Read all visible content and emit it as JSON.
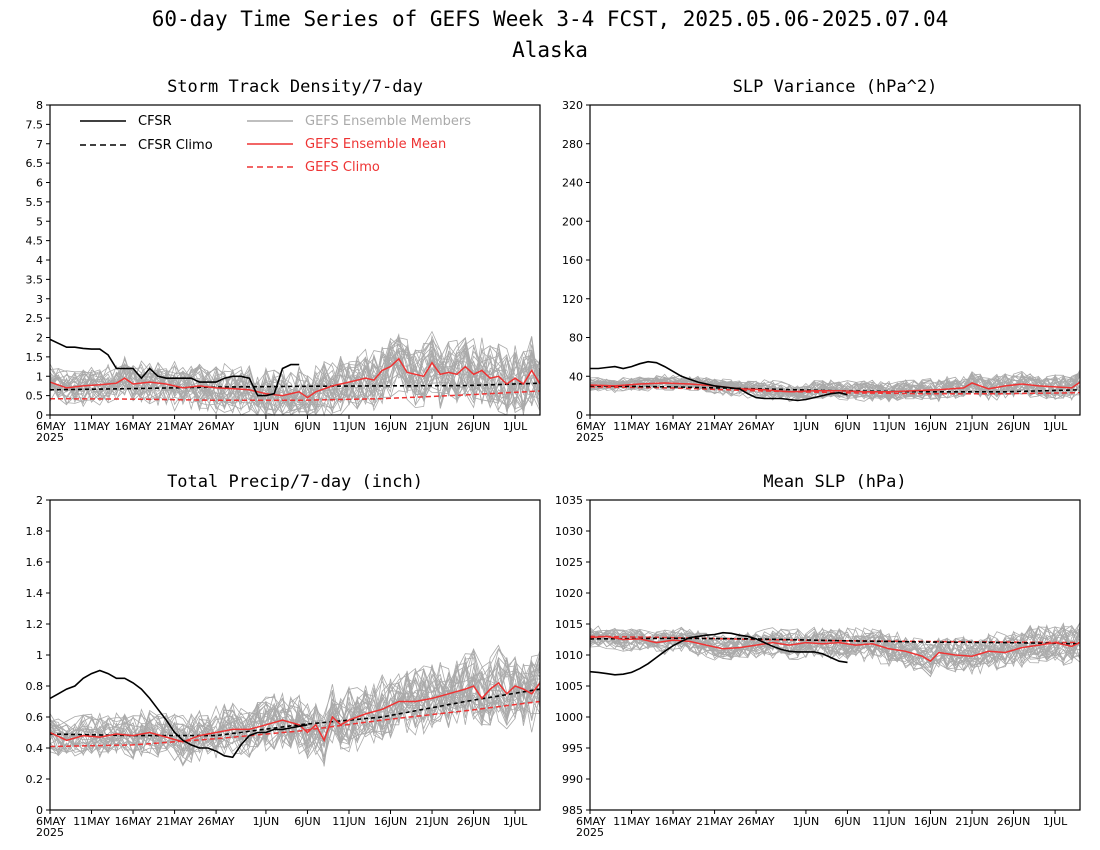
{
  "figure": {
    "title_line1": "60-day Time Series of GEFS Week 3-4 FCST, 2025.05.06-2025.07.04",
    "title_line2": "Alaska"
  },
  "colors": {
    "cfsr": "#000000",
    "members": "#aaaaaa",
    "ens_mean": "#ee3333",
    "gefs_climo": "#ee3333"
  },
  "legend": {
    "cfsr": "CFSR",
    "cfsr_climo": "CFSR Climo",
    "members": "GEFS Ensemble Members",
    "ens_mean": "GEFS Ensemble Mean",
    "gefs_climo": "GEFS Climo"
  },
  "x_axis": {
    "tick_labels": [
      "6MAY",
      "11MAY",
      "16MAY",
      "21MAY",
      "26MAY",
      "1JUN",
      "6JUN",
      "11JUN",
      "16JUN",
      "21JUN",
      "26JUN",
      "1JUL"
    ],
    "tick_days": [
      0,
      5,
      10,
      15,
      20,
      26,
      31,
      36,
      41,
      46,
      51,
      56
    ],
    "year_label": "2025",
    "day_range": [
      0,
      59
    ]
  },
  "chart_data": [
    {
      "type": "line",
      "title": "Storm Track Density/7-day",
      "ylim": [
        0,
        8
      ],
      "yticks": [
        "0",
        "0.5",
        "1",
        "1.5",
        "2",
        "2.5",
        "3",
        "3.5",
        "4",
        "4.5",
        "5",
        "5.5",
        "6",
        "6.5",
        "7",
        "7.5",
        "8"
      ],
      "cfsr": {
        "x": [
          0,
          1,
          2,
          3,
          4,
          5,
          6,
          7,
          8,
          9,
          10,
          11,
          12,
          13,
          14,
          15,
          16,
          17,
          18,
          19,
          20,
          21,
          22,
          23,
          24,
          25,
          26,
          27,
          28,
          29,
          30
        ],
        "y": [
          1.95,
          1.85,
          1.75,
          1.75,
          1.72,
          1.7,
          1.7,
          1.55,
          1.2,
          1.2,
          1.2,
          0.95,
          1.2,
          1.0,
          0.95,
          0.95,
          0.95,
          0.95,
          0.85,
          0.85,
          0.85,
          0.95,
          1.0,
          1.0,
          0.95,
          0.5,
          0.5,
          0.55,
          1.2,
          1.3,
          1.3
        ]
      },
      "cfsr_climo": {
        "x": [
          0,
          10,
          20,
          30,
          40,
          50,
          59
        ],
        "y": [
          0.65,
          0.68,
          0.72,
          0.74,
          0.75,
          0.76,
          0.82
        ]
      },
      "gefs_climo": {
        "x": [
          0,
          10,
          20,
          30,
          40,
          50,
          59
        ],
        "y": [
          0.42,
          0.41,
          0.38,
          0.38,
          0.42,
          0.52,
          0.62
        ]
      },
      "ens_mean": {
        "x": [
          0,
          2,
          4,
          6,
          8,
          9,
          10,
          12,
          14,
          16,
          18,
          20,
          22,
          24,
          26,
          28,
          30,
          31,
          32,
          34,
          36,
          38,
          39,
          40,
          41,
          42,
          43,
          44,
          45,
          46,
          47,
          48,
          49,
          50,
          51,
          52,
          53,
          54,
          55,
          56,
          57,
          58,
          59
        ],
        "y": [
          0.85,
          0.7,
          0.75,
          0.78,
          0.82,
          0.95,
          0.8,
          0.85,
          0.8,
          0.7,
          0.75,
          0.7,
          0.68,
          0.65,
          0.55,
          0.5,
          0.6,
          0.45,
          0.6,
          0.75,
          0.85,
          0.95,
          0.9,
          1.15,
          1.25,
          1.45,
          1.1,
          1.05,
          1.0,
          1.35,
          1.05,
          1.1,
          1.05,
          1.25,
          1.05,
          1.15,
          0.95,
          1.0,
          0.8,
          0.95,
          0.8,
          1.15,
          0.8
        ]
      },
      "members": {
        "count": 30,
        "spread": 0.6,
        "base": 0.8
      }
    },
    {
      "type": "line",
      "title": "SLP Variance (hPa^2)",
      "ylim": [
        0,
        320
      ],
      "yticks": [
        "0",
        "40",
        "80",
        "120",
        "160",
        "200",
        "240",
        "280",
        "320"
      ],
      "cfsr": {
        "x": [
          0,
          1,
          2,
          3,
          4,
          5,
          6,
          7,
          8,
          9,
          10,
          11,
          12,
          13,
          14,
          15,
          16,
          17,
          18,
          19,
          20,
          21,
          22,
          23,
          24,
          25,
          26,
          27,
          28,
          29,
          30,
          31
        ],
        "y": [
          48,
          48,
          49,
          50,
          48,
          50,
          53,
          55,
          54,
          50,
          45,
          40,
          37,
          34,
          32,
          30,
          29,
          28,
          27,
          22,
          18,
          17,
          17,
          17,
          16,
          15,
          16,
          18,
          20,
          22,
          23,
          21
        ]
      },
      "cfsr_climo": {
        "x": [
          0,
          10,
          20,
          30,
          40,
          50,
          59
        ],
        "y": [
          30,
          29,
          27,
          25,
          24,
          24,
          26
        ]
      },
      "gefs_climo": {
        "x": [
          0,
          10,
          20,
          30,
          40,
          50,
          59
        ],
        "y": [
          29,
          28,
          25,
          23,
          22,
          22,
          23
        ]
      },
      "ens_mean": {
        "x": [
          0,
          3,
          6,
          9,
          12,
          15,
          18,
          21,
          24,
          27,
          30,
          33,
          36,
          39,
          42,
          45,
          46,
          48,
          50,
          52,
          54,
          56,
          58,
          59
        ],
        "y": [
          31,
          30,
          32,
          33,
          32,
          30,
          27,
          26,
          24,
          25,
          25,
          24,
          24,
          25,
          26,
          28,
          33,
          27,
          30,
          32,
          30,
          29,
          28,
          34
        ]
      },
      "members": {
        "count": 30,
        "spread": 9,
        "base": 28
      }
    },
    {
      "type": "line",
      "title": "Total Precip/7-day (inch)",
      "ylim": [
        0,
        2
      ],
      "yticks": [
        "0",
        "0.2",
        "0.4",
        "0.6",
        "0.8",
        "1",
        "1.2",
        "1.4",
        "1.6",
        "1.8",
        "2"
      ],
      "cfsr": {
        "x": [
          0,
          1,
          2,
          3,
          4,
          5,
          6,
          7,
          8,
          9,
          10,
          11,
          12,
          13,
          14,
          15,
          16,
          17,
          18,
          19,
          20,
          21,
          22,
          23,
          24,
          25,
          26,
          27,
          28,
          29,
          30,
          31
        ],
        "y": [
          0.72,
          0.75,
          0.78,
          0.8,
          0.85,
          0.88,
          0.9,
          0.88,
          0.85,
          0.85,
          0.82,
          0.78,
          0.72,
          0.65,
          0.58,
          0.5,
          0.45,
          0.42,
          0.4,
          0.4,
          0.38,
          0.35,
          0.34,
          0.42,
          0.48,
          0.5,
          0.5,
          0.52,
          0.52,
          0.53,
          0.54,
          0.55
        ]
      },
      "cfsr_climo": {
        "x": [
          0,
          10,
          20,
          30,
          40,
          50,
          59
        ],
        "y": [
          0.49,
          0.48,
          0.48,
          0.55,
          0.6,
          0.7,
          0.78
        ]
      },
      "gefs_climo": {
        "x": [
          0,
          10,
          20,
          30,
          40,
          50,
          59
        ],
        "y": [
          0.41,
          0.42,
          0.46,
          0.51,
          0.58,
          0.64,
          0.7
        ]
      },
      "ens_mean": {
        "x": [
          0,
          2,
          4,
          6,
          8,
          10,
          12,
          14,
          16,
          18,
          20,
          22,
          24,
          26,
          28,
          30,
          31,
          32,
          33,
          34,
          35,
          36,
          38,
          40,
          42,
          44,
          46,
          48,
          50,
          51,
          52,
          53,
          54,
          55,
          56,
          57,
          58,
          59
        ],
        "y": [
          0.5,
          0.45,
          0.48,
          0.47,
          0.49,
          0.48,
          0.5,
          0.47,
          0.44,
          0.48,
          0.5,
          0.52,
          0.52,
          0.55,
          0.58,
          0.55,
          0.5,
          0.55,
          0.45,
          0.6,
          0.55,
          0.58,
          0.62,
          0.65,
          0.7,
          0.7,
          0.72,
          0.75,
          0.78,
          0.8,
          0.72,
          0.78,
          0.82,
          0.75,
          0.8,
          0.78,
          0.75,
          0.82
        ]
      },
      "members": {
        "count": 30,
        "spread": 0.16,
        "base": 0.55
      }
    },
    {
      "type": "line",
      "title": "Mean SLP (hPa)",
      "ylim": [
        985,
        1035
      ],
      "yticks": [
        "985",
        "990",
        "995",
        "1000",
        "1005",
        "1010",
        "1015",
        "1020",
        "1025",
        "1030",
        "1035"
      ],
      "cfsr": {
        "x": [
          0,
          1,
          2,
          3,
          4,
          5,
          6,
          7,
          8,
          9,
          10,
          11,
          12,
          13,
          14,
          15,
          16,
          17,
          18,
          19,
          20,
          21,
          22,
          23,
          24,
          25,
          26,
          27,
          28,
          29,
          30,
          31
        ],
        "y": [
          1007.3,
          1007.2,
          1007.0,
          1006.8,
          1006.9,
          1007.2,
          1007.8,
          1008.6,
          1009.6,
          1010.6,
          1011.5,
          1012.2,
          1012.8,
          1013.0,
          1013.2,
          1013.3,
          1013.6,
          1013.5,
          1013.2,
          1013.0,
          1012.6,
          1012.0,
          1011.4,
          1010.9,
          1010.6,
          1010.5,
          1010.5,
          1010.5,
          1010.2,
          1009.6,
          1009.0,
          1008.8
        ]
      },
      "cfsr_climo": {
        "x": [
          0,
          10,
          20,
          30,
          40,
          50,
          59
        ],
        "y": [
          1012.6,
          1012.7,
          1012.6,
          1012.3,
          1012.1,
          1012.0,
          1011.8
        ]
      },
      "gefs_climo": {
        "x": [
          0,
          10,
          20,
          30,
          40,
          50,
          59
        ],
        "y": [
          1013.0,
          1012.8,
          1012.5,
          1012.3,
          1012.2,
          1012.1,
          1012.0
        ]
      },
      "ens_mean": {
        "x": [
          0,
          2,
          4,
          6,
          8,
          10,
          12,
          14,
          16,
          18,
          20,
          22,
          24,
          26,
          28,
          30,
          32,
          34,
          36,
          38,
          40,
          41,
          42,
          44,
          46,
          48,
          50,
          52,
          54,
          56,
          58,
          59
        ],
        "y": [
          1012.8,
          1013.0,
          1012.5,
          1012.6,
          1012.0,
          1012.4,
          1012.2,
          1011.6,
          1011.0,
          1011.2,
          1011.6,
          1012.0,
          1011.6,
          1012.0,
          1011.8,
          1012.0,
          1011.6,
          1011.8,
          1011.0,
          1010.6,
          1009.8,
          1009.0,
          1010.4,
          1010.0,
          1009.8,
          1010.6,
          1010.4,
          1011.2,
          1011.6,
          1012.0,
          1011.4,
          1012.0
        ]
      },
      "members": {
        "count": 30,
        "spread": 2.2,
        "base": 1011.5
      }
    }
  ]
}
